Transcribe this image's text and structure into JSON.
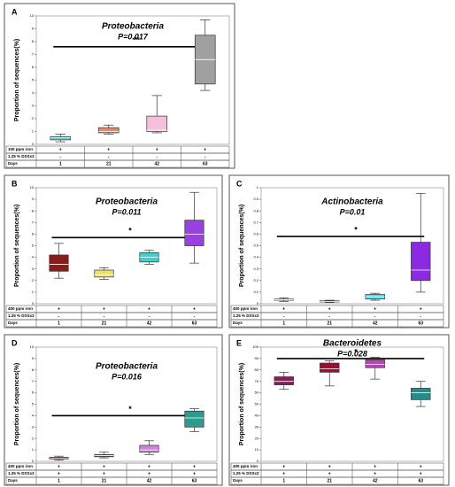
{
  "chart_data": [
    {
      "type": "box",
      "panel": "A",
      "title": "Proteobacteria",
      "annotation": "P=0.017",
      "significance": "**",
      "ylabel": "Proportion of sequences(%)",
      "ylim": [
        0,
        10
      ],
      "yticks": [
        0,
        1,
        2,
        3,
        4,
        5,
        6,
        7,
        8,
        9,
        10
      ],
      "boxes": [
        {
          "color": "#5bc8c8",
          "min": 0.2,
          "q1": 0.35,
          "median": 0.5,
          "q3": 0.6,
          "max": 0.8
        },
        {
          "color": "#e8886a",
          "min": 0.8,
          "q1": 0.9,
          "median": 1.0,
          "q3": 1.3,
          "max": 1.5
        },
        {
          "color": "#f5c0dc",
          "min": 0.9,
          "q1": 1.0,
          "median": 1.1,
          "q3": 2.2,
          "max": 3.8
        },
        {
          "color": "#a0a0a0",
          "min": 4.2,
          "q1": 4.7,
          "median": 6.6,
          "q3": 8.5,
          "max": 9.7
        }
      ],
      "table": [
        {
          "label": "100 ppm iron",
          "cells": [
            "+",
            "+",
            "+",
            "+"
          ]
        },
        {
          "label": "1.25 % DSSx3",
          "cells": [
            "-",
            "-",
            "-",
            "-"
          ]
        },
        {
          "label": "Days",
          "cells": [
            "1",
            "21",
            "42",
            "63"
          ]
        }
      ]
    },
    {
      "type": "box",
      "panel": "B",
      "title": "Proteobacteria",
      "annotation": "P=0.011",
      "significance": "*",
      "ylabel": "Proportion of sequences(%)",
      "ylim": [
        0,
        10
      ],
      "yticks": [
        0,
        1,
        2,
        3,
        4,
        5,
        6,
        7,
        8,
        9,
        10
      ],
      "boxes": [
        {
          "color": "#8b1a1a",
          "min": 2.2,
          "q1": 2.8,
          "median": 3.4,
          "q3": 4.2,
          "max": 5.2
        },
        {
          "color": "#f0e060",
          "min": 2.1,
          "q1": 2.3,
          "median": 2.5,
          "q3": 2.9,
          "max": 3.1
        },
        {
          "color": "#40d0d0",
          "min": 3.4,
          "q1": 3.6,
          "median": 4.0,
          "q3": 4.4,
          "max": 4.6
        },
        {
          "color": "#9a40e0",
          "min": 3.5,
          "q1": 5.0,
          "median": 6.0,
          "q3": 7.2,
          "max": 9.6
        }
      ],
      "table": [
        {
          "label": "400 ppm iron",
          "cells": [
            "+",
            "+",
            "+",
            "+"
          ]
        },
        {
          "label": "1.25 % DSSx3",
          "cells": [
            "-",
            "-",
            "-",
            "-"
          ]
        },
        {
          "label": "Days",
          "cells": [
            "1",
            "21",
            "42",
            "63"
          ]
        }
      ]
    },
    {
      "type": "box",
      "panel": "C",
      "title": "Actinobacteria",
      "annotation": "P=0.01",
      "significance": "*",
      "ylabel": "Proportion of sequences(%)",
      "ylim": [
        0,
        1
      ],
      "yticks": [
        0,
        0.1,
        0.2,
        0.3,
        0.4,
        0.5,
        0.6,
        0.7,
        0.8,
        0.9,
        1
      ],
      "boxes": [
        {
          "color": "#8b3a2a",
          "min": 0.02,
          "q1": 0.03,
          "median": 0.035,
          "q3": 0.04,
          "max": 0.05
        },
        {
          "color": "#f0e070",
          "min": 0.01,
          "q1": 0.015,
          "median": 0.02,
          "q3": 0.025,
          "max": 0.03
        },
        {
          "color": "#50d8e8",
          "min": 0.03,
          "q1": 0.04,
          "median": 0.06,
          "q3": 0.08,
          "max": 0.09
        },
        {
          "color": "#8a2be2",
          "min": 0.1,
          "q1": 0.2,
          "median": 0.29,
          "q3": 0.53,
          "max": 0.95
        }
      ],
      "table": [
        {
          "label": "400 ppm iron",
          "cells": [
            "+",
            "+",
            "+",
            "+"
          ]
        },
        {
          "label": "1.25 % DSSx3",
          "cells": [
            "-",
            "-",
            "-",
            "-"
          ]
        },
        {
          "label": "Days",
          "cells": [
            "1",
            "21",
            "42",
            "63"
          ]
        }
      ]
    },
    {
      "type": "box",
      "panel": "D",
      "title": "Proteobacteria",
      "annotation": "P=0.016",
      "significance": "*",
      "ylabel": "Proportion of sequences(%)",
      "ylim": [
        0,
        10
      ],
      "yticks": [
        0,
        1,
        2,
        3,
        4,
        5,
        6,
        7,
        8,
        9,
        10
      ],
      "boxes": [
        {
          "color": "#8b1a1a",
          "min": 0.1,
          "q1": 0.2,
          "median": 0.25,
          "q3": 0.35,
          "max": 0.45
        },
        {
          "color": "#b04020",
          "min": 0.3,
          "q1": 0.4,
          "median": 0.5,
          "q3": 0.6,
          "max": 0.8
        },
        {
          "color": "#d080e0",
          "min": 0.6,
          "q1": 0.8,
          "median": 1.0,
          "q3": 1.4,
          "max": 1.8
        },
        {
          "color": "#2a9d8f",
          "min": 2.6,
          "q1": 3.0,
          "median": 3.8,
          "q3": 4.4,
          "max": 4.6
        }
      ],
      "table": [
        {
          "label": "400 ppm iron",
          "cells": [
            "+",
            "+",
            "+",
            "+"
          ]
        },
        {
          "label": "1.25 % DSSx3",
          "cells": [
            "+",
            "+",
            "+",
            "+"
          ]
        },
        {
          "label": "Days",
          "cells": [
            "1",
            "21",
            "42",
            "63"
          ]
        }
      ]
    },
    {
      "type": "box",
      "panel": "E",
      "title": "Bacteroidetes",
      "annotation": "P=0.028",
      "significance": "*",
      "ylabel": "Proportion of sequences(%)",
      "ylim": [
        0,
        100
      ],
      "yticks": [
        0,
        10,
        20,
        30,
        40,
        50,
        60,
        70,
        80,
        90,
        100
      ],
      "boxes": [
        {
          "color": "#8b1a5a",
          "min": 63,
          "q1": 67,
          "median": 70,
          "q3": 74,
          "max": 78
        },
        {
          "color": "#9b1030",
          "min": 66,
          "q1": 78,
          "median": 81,
          "q3": 86,
          "max": 88
        },
        {
          "color": "#b04ab0",
          "min": 72,
          "q1": 82,
          "median": 85,
          "q3": 89,
          "max": 91
        },
        {
          "color": "#2a8a8a",
          "min": 48,
          "q1": 54,
          "median": 60,
          "q3": 64,
          "max": 70
        }
      ],
      "table": [
        {
          "label": "400 ppm iron",
          "cells": [
            "+",
            "+",
            "+",
            "+"
          ]
        },
        {
          "label": "1.25 % DSSx3",
          "cells": [
            "+",
            "+",
            "+",
            "+"
          ]
        },
        {
          "label": "Days",
          "cells": [
            "1",
            "21",
            "42",
            "63"
          ]
        }
      ]
    }
  ]
}
